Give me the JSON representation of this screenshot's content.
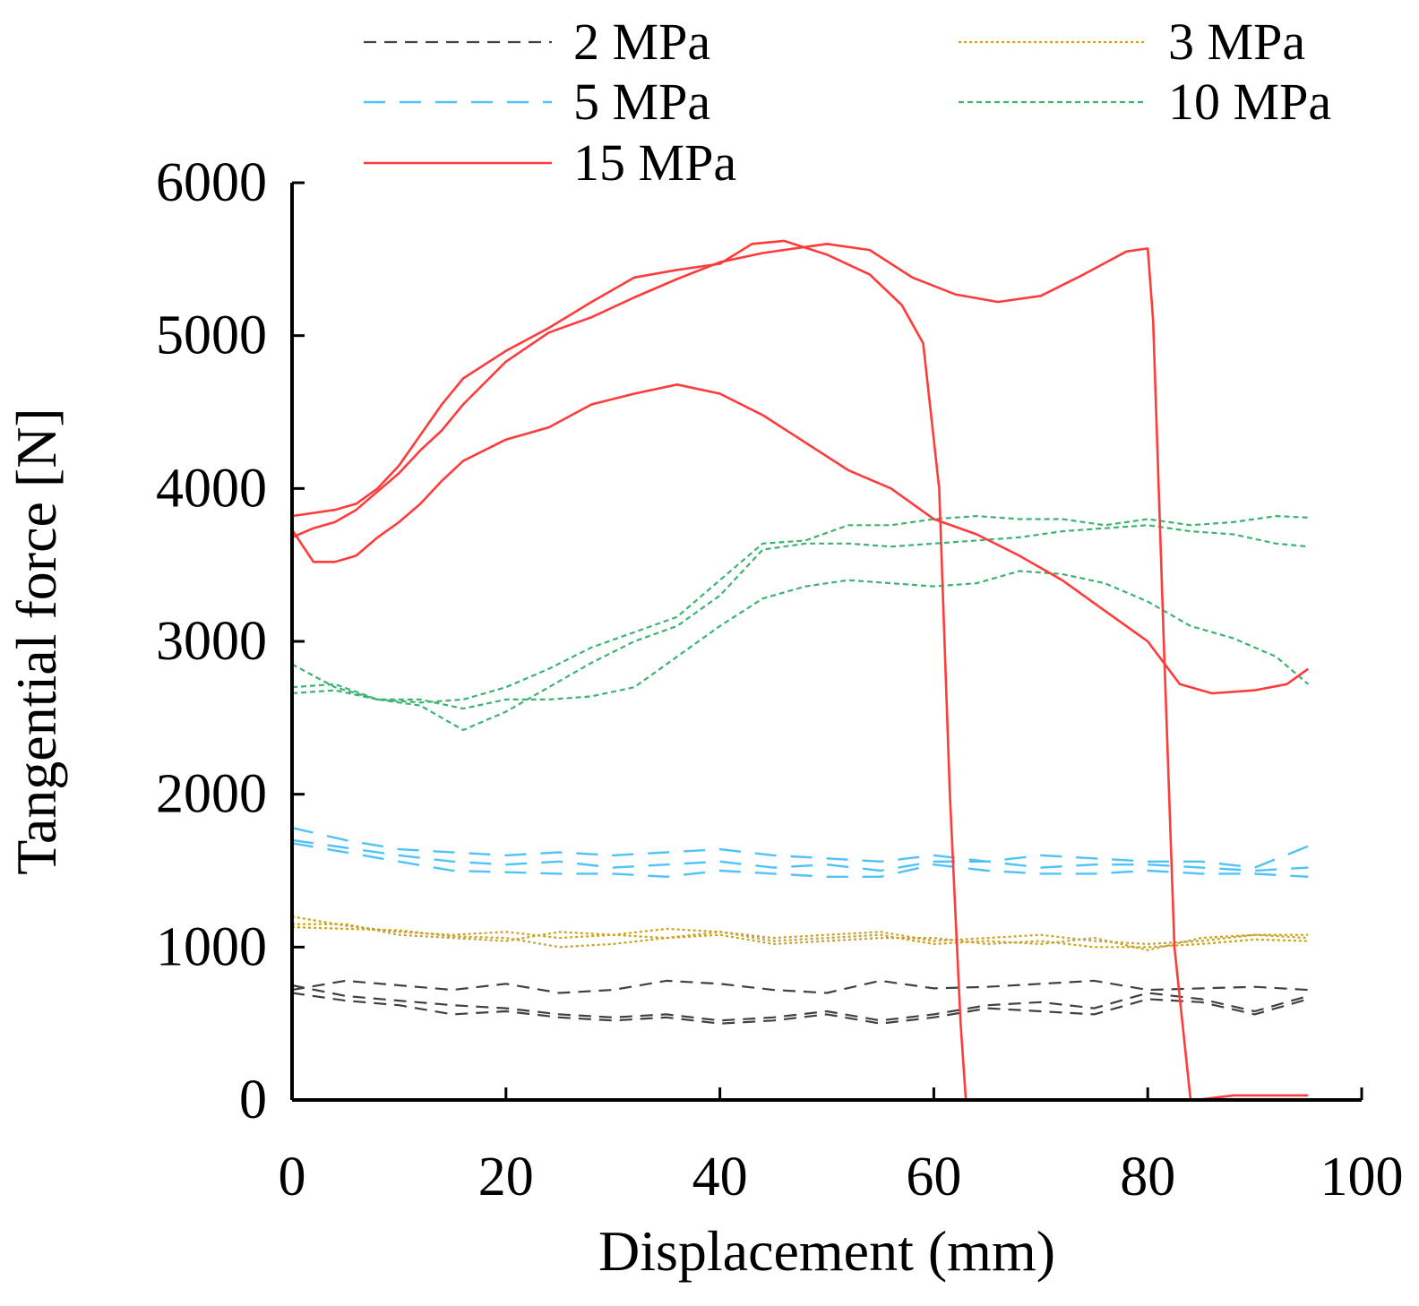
{
  "chart_data": {
    "type": "line",
    "title": "",
    "xlabel": "Displacement (mm)",
    "ylabel": "Tangential force [N]",
    "xlim": [
      0,
      100
    ],
    "ylim": [
      0,
      6000
    ],
    "xticks": [
      0,
      20,
      40,
      60,
      80,
      100
    ],
    "yticks": [
      0,
      1000,
      2000,
      3000,
      4000,
      5000,
      6000
    ],
    "grid": false,
    "legend_position": "top",
    "series": [
      {
        "name": "2 MPa",
        "color": "#404040",
        "dash": "dashed-short",
        "runs": [
          {
            "x": [
              0,
              5,
              10,
              15,
              20,
              25,
              30,
              35,
              40,
              45,
              50,
              55,
              60,
              65,
              70,
              75,
              80,
              85,
              90,
              95
            ],
            "y": [
              720,
              780,
              750,
              720,
              760,
              700,
              720,
              780,
              760,
              720,
              700,
              780,
              730,
              740,
              760,
              780,
              720,
              730,
              740,
              720
            ]
          },
          {
            "x": [
              0,
              5,
              10,
              15,
              20,
              25,
              30,
              35,
              40,
              45,
              50,
              55,
              60,
              65,
              70,
              75,
              80,
              85,
              90,
              95
            ],
            "y": [
              750,
              680,
              650,
              620,
              600,
              560,
              540,
              560,
              520,
              540,
              580,
              520,
              560,
              620,
              640,
              600,
              700,
              660,
              580,
              680
            ]
          },
          {
            "x": [
              0,
              5,
              10,
              15,
              20,
              25,
              30,
              35,
              40,
              45,
              50,
              55,
              60,
              65,
              70,
              75,
              80,
              85,
              90,
              95
            ],
            "y": [
              700,
              650,
              620,
              560,
              580,
              540,
              520,
              540,
              500,
              520,
              560,
              500,
              540,
              600,
              580,
              560,
              660,
              640,
              560,
              660
            ]
          }
        ]
      },
      {
        "name": "3 MPa",
        "color": "#c9a227",
        "dash": "dotted",
        "runs": [
          {
            "x": [
              0,
              5,
              10,
              15,
              20,
              25,
              30,
              35,
              40,
              45,
              50,
              55,
              60,
              65,
              70,
              75,
              80,
              85,
              90,
              95
            ],
            "y": [
              1200,
              1140,
              1100,
              1080,
              1100,
              1060,
              1080,
              1120,
              1100,
              1040,
              1060,
              1080,
              1020,
              1040,
              1020,
              1060,
              980,
              1060,
              1080,
              1080
            ]
          },
          {
            "x": [
              0,
              5,
              10,
              15,
              20,
              25,
              30,
              35,
              40,
              45,
              50,
              55,
              60,
              65,
              70,
              75,
              80,
              85,
              90,
              95
            ],
            "y": [
              1150,
              1150,
              1080,
              1060,
              1040,
              1100,
              1080,
              1060,
              1100,
              1060,
              1080,
              1100,
              1040,
              1060,
              1080,
              1040,
              1020,
              1040,
              1080,
              1060
            ]
          },
          {
            "x": [
              0,
              5,
              10,
              15,
              20,
              25,
              30,
              35,
              40,
              45,
              50,
              55,
              60,
              65,
              70,
              75,
              80,
              85,
              90,
              95
            ],
            "y": [
              1130,
              1120,
              1110,
              1070,
              1060,
              1000,
              1020,
              1060,
              1080,
              1020,
              1040,
              1060,
              1060,
              1020,
              1040,
              1000,
              1000,
              1020,
              1050,
              1040
            ]
          }
        ]
      },
      {
        "name": "5 MPa",
        "color": "#4fc3f7",
        "dash": "dashed-long",
        "runs": [
          {
            "x": [
              0,
              5,
              10,
              15,
              20,
              25,
              30,
              35,
              40,
              45,
              50,
              55,
              60,
              65,
              70,
              75,
              80,
              85,
              90,
              95
            ],
            "y": [
              1780,
              1700,
              1640,
              1620,
              1600,
              1620,
              1600,
              1620,
              1640,
              1600,
              1580,
              1560,
              1600,
              1560,
              1600,
              1580,
              1560,
              1560,
              1520,
              1660
            ]
          },
          {
            "x": [
              0,
              5,
              10,
              15,
              20,
              25,
              30,
              35,
              40,
              45,
              50,
              55,
              60,
              65,
              70,
              75,
              80,
              85,
              90,
              95
            ],
            "y": [
              1700,
              1650,
              1600,
              1560,
              1540,
              1560,
              1520,
              1540,
              1560,
              1520,
              1540,
              1500,
              1560,
              1560,
              1520,
              1540,
              1540,
              1520,
              1500,
              1520
            ]
          },
          {
            "x": [
              0,
              5,
              10,
              15,
              20,
              25,
              30,
              35,
              40,
              45,
              50,
              55,
              60,
              65,
              70,
              75,
              80,
              85,
              90,
              95
            ],
            "y": [
              1680,
              1620,
              1560,
              1500,
              1490,
              1480,
              1480,
              1460,
              1500,
              1480,
              1460,
              1460,
              1540,
              1500,
              1480,
              1480,
              1500,
              1480,
              1480,
              1460
            ]
          }
        ]
      },
      {
        "name": "10 MPa",
        "color": "#3cb371",
        "dash": "dotted-dense",
        "runs": [
          {
            "x": [
              0,
              4,
              8,
              12,
              16,
              20,
              24,
              28,
              32,
              36,
              40,
              44,
              48,
              52,
              56,
              60,
              64,
              68,
              72,
              76,
              80,
              84,
              88,
              92,
              95
            ],
            "y": [
              2700,
              2720,
              2620,
              2580,
              2420,
              2540,
              2700,
              2860,
              3000,
              3100,
              3300,
              3600,
              3640,
              3640,
              3620,
              3640,
              3660,
              3680,
              3720,
              3740,
              3760,
              3720,
              3700,
              3640,
              3620
            ]
          },
          {
            "x": [
              0,
              4,
              8,
              12,
              16,
              20,
              24,
              28,
              32,
              36,
              40,
              44,
              48,
              52,
              56,
              60,
              64,
              68,
              72,
              76,
              80,
              84,
              88,
              92,
              95
            ],
            "y": [
              2850,
              2700,
              2620,
              2600,
              2620,
              2700,
              2820,
              2960,
              3060,
              3160,
              3400,
              3640,
              3660,
              3760,
              3760,
              3800,
              3820,
              3800,
              3800,
              3760,
              3800,
              3760,
              3780,
              3820,
              3810
            ]
          },
          {
            "x": [
              0,
              4,
              8,
              12,
              16,
              20,
              24,
              28,
              32,
              36,
              40,
              44,
              48,
              52,
              56,
              60,
              64,
              68,
              72,
              76,
              80,
              84,
              88,
              92,
              95
            ],
            "y": [
              2660,
              2680,
              2620,
              2620,
              2560,
              2620,
              2620,
              2640,
              2700,
              2900,
              3100,
              3280,
              3360,
              3400,
              3380,
              3360,
              3380,
              3460,
              3440,
              3380,
              3260,
              3100,
              3020,
              2900,
              2720
            ]
          }
        ]
      },
      {
        "name": "15 MPa",
        "color": "#ff3b3b",
        "dash": "solid",
        "runs": [
          {
            "x": [
              0,
              2,
              4,
              6,
              8,
              10,
              12,
              14,
              16,
              20,
              24,
              28,
              32,
              36,
              40,
              43,
              46,
              50,
              54,
              57,
              59,
              60.5,
              61.5,
              62.5,
              63,
              66,
              75,
              80,
              85,
              95
            ],
            "y": [
              3820,
              3840,
              3860,
              3900,
              4000,
              4150,
              4350,
              4550,
              4720,
              4900,
              5050,
              5220,
              5380,
              5430,
              5470,
              5600,
              5620,
              5530,
              5400,
              5200,
              4950,
              4000,
              2000,
              500,
              0,
              0,
              0,
              0,
              0,
              0
            ]
          },
          {
            "x": [
              0,
              2,
              4,
              6,
              8,
              10,
              12,
              14,
              16,
              20,
              24,
              28,
              32,
              36,
              40,
              44,
              48,
              50,
              54,
              58,
              62,
              66,
              70,
              74,
              78,
              80,
              80.5,
              81.5,
              82.5,
              84,
              84.5,
              88,
              95
            ],
            "y": [
              3680,
              3740,
              3780,
              3860,
              3980,
              4100,
              4250,
              4380,
              4550,
              4830,
              5020,
              5120,
              5250,
              5370,
              5480,
              5540,
              5580,
              5600,
              5560,
              5380,
              5270,
              5220,
              5260,
              5400,
              5550,
              5570,
              5100,
              3000,
              1000,
              0,
              0,
              30,
              30
            ]
          },
          {
            "x": [
              0,
              2,
              4,
              6,
              8,
              10,
              12,
              14,
              16,
              20,
              24,
              28,
              32,
              36,
              40,
              44,
              48,
              52,
              56,
              60,
              64,
              68,
              72,
              76,
              80,
              83,
              86,
              90,
              93,
              95
            ],
            "y": [
              3730,
              3520,
              3520,
              3560,
              3680,
              3780,
              3900,
              4050,
              4180,
              4320,
              4400,
              4550,
              4620,
              4680,
              4620,
              4480,
              4300,
              4120,
              4000,
              3800,
              3700,
              3560,
              3400,
              3200,
              3000,
              2720,
              2660,
              2680,
              2720,
              2820
            ]
          }
        ]
      }
    ]
  }
}
